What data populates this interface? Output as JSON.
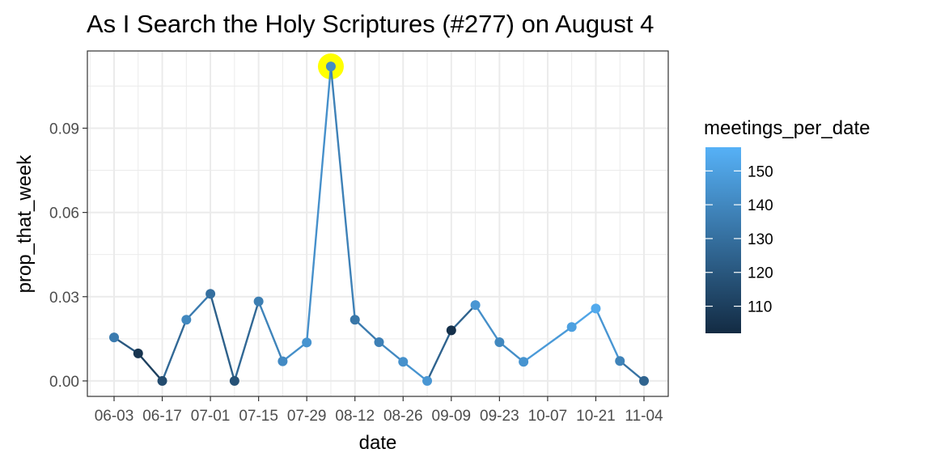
{
  "chart_data": {
    "type": "line",
    "title": "As I Search the Holy Scriptures (#277) on August 4",
    "xlabel": "date",
    "ylabel": "prop_that_week",
    "x_tick_labels": [
      "06-03",
      "06-17",
      "07-01",
      "07-15",
      "07-29",
      "08-12",
      "08-26",
      "09-09",
      "09-23",
      "10-07",
      "10-21",
      "11-04"
    ],
    "y_ticks": [
      0.0,
      0.03,
      0.06,
      0.09
    ],
    "y_tick_labels": [
      "0.00",
      "0.03",
      "0.06",
      "0.09"
    ],
    "ylim": [
      -0.0055,
      0.1175
    ],
    "grid": true,
    "highlight": {
      "date": "08-05",
      "color": "#ffff00"
    },
    "color_scale": {
      "name": "meetings_per_date",
      "min": 102,
      "max": 157,
      "low_color": "#132b43",
      "high_color": "#56b1f7",
      "ticks": [
        110,
        120,
        130,
        140,
        150
      ]
    },
    "points": [
      {
        "date": "06-03",
        "y": 0.0155,
        "meetings": 135
      },
      {
        "date": "06-10",
        "y": 0.0098,
        "meetings": 106
      },
      {
        "date": "06-17",
        "y": 0.0,
        "meetings": 115
      },
      {
        "date": "06-24",
        "y": 0.0218,
        "meetings": 140
      },
      {
        "date": "07-01",
        "y": 0.031,
        "meetings": 130
      },
      {
        "date": "07-08",
        "y": 0.0,
        "meetings": 118
      },
      {
        "date": "07-15",
        "y": 0.0283,
        "meetings": 136
      },
      {
        "date": "07-22",
        "y": 0.007,
        "meetings": 141
      },
      {
        "date": "07-29",
        "y": 0.0137,
        "meetings": 145
      },
      {
        "date": "08-05",
        "y": 0.112,
        "meetings": 142
      },
      {
        "date": "08-12",
        "y": 0.0218,
        "meetings": 133
      },
      {
        "date": "08-19",
        "y": 0.0138,
        "meetings": 137
      },
      {
        "date": "08-26",
        "y": 0.0068,
        "meetings": 144
      },
      {
        "date": "09-02",
        "y": 0.0,
        "meetings": 146
      },
      {
        "date": "09-09",
        "y": 0.018,
        "meetings": 104
      },
      {
        "date": "09-16",
        "y": 0.027,
        "meetings": 146
      },
      {
        "date": "09-23",
        "y": 0.0138,
        "meetings": 140
      },
      {
        "date": "09-30",
        "y": 0.0068,
        "meetings": 145
      },
      {
        "date": "10-14",
        "y": 0.0192,
        "meetings": 150
      },
      {
        "date": "10-21",
        "y": 0.0258,
        "meetings": 154
      },
      {
        "date": "10-28",
        "y": 0.0071,
        "meetings": 138
      },
      {
        "date": "11-04",
        "y": 0.0,
        "meetings": 125
      }
    ]
  }
}
